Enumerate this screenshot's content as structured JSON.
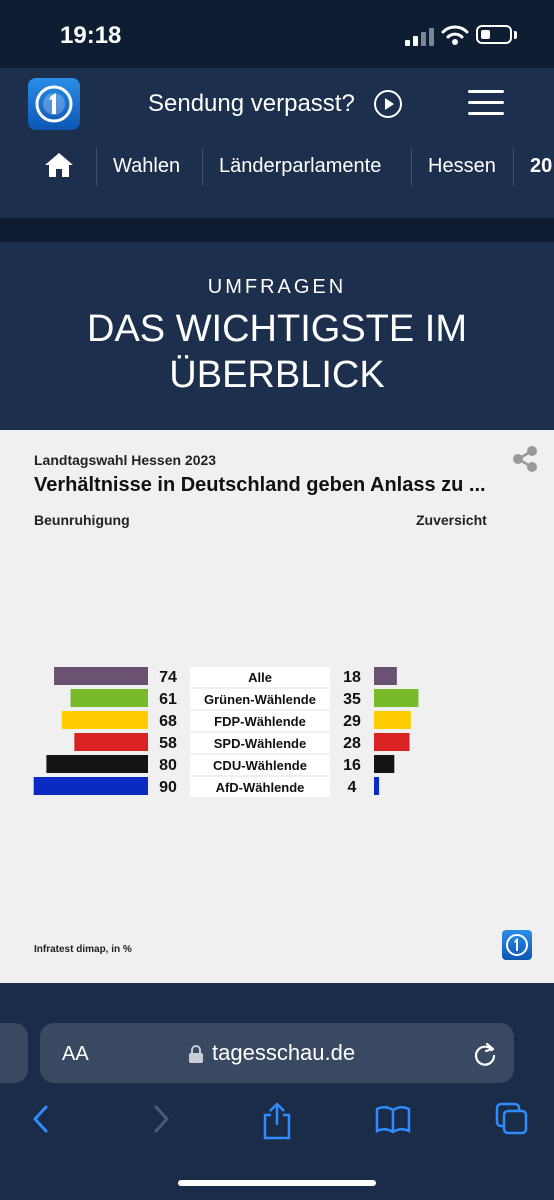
{
  "status": {
    "time": "19:18"
  },
  "header": {
    "title": "Sendung verpasst?",
    "nav": [
      "Wahlen",
      "Länderparlamente",
      "Hessen",
      "20"
    ]
  },
  "hero": {
    "kicker": "UMFRAGEN",
    "headline_line1": "DAS WICHTIGSTE IM",
    "headline_line2": "ÜBERBLICK"
  },
  "card": {
    "kicker": "Landtagswahl Hessen 2023",
    "title": "Verhältnisse in Deutschland geben Anlass zu ...",
    "left_label": "Beunruhigung",
    "right_label": "Zuversicht",
    "source": "Infratest dimap, in %"
  },
  "chart_data": {
    "type": "bar",
    "categories": [
      "Alle",
      "Grünen-Wählende",
      "FDP-Wählende",
      "SPD-Wählende",
      "CDU-Wählende",
      "AfD-Wählende"
    ],
    "series": [
      {
        "name": "Beunruhigung",
        "values": [
          74,
          61,
          68,
          58,
          80,
          90
        ]
      },
      {
        "name": "Zuversicht",
        "values": [
          18,
          35,
          29,
          28,
          16,
          4
        ]
      }
    ],
    "colors": [
      "#6b5272",
      "#78bb2a",
      "#ffcc00",
      "#d92323",
      "#141414",
      "#0a2bc2"
    ]
  },
  "safari": {
    "aa": "AA",
    "url": "tagesschau.de"
  }
}
